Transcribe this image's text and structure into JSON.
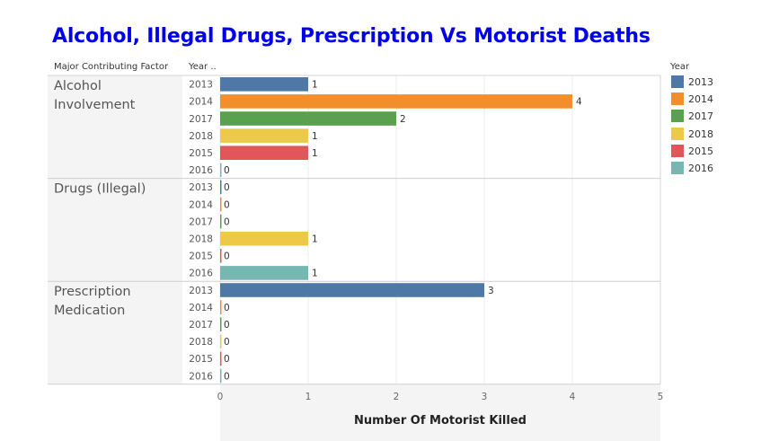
{
  "title": "Alcohol, Illegal Drugs, Prescription Vs Motorist Deaths",
  "colors": {
    "title": "#0000ee",
    "2013": "#4e79a7",
    "2014": "#f28e2b",
    "2017": "#59a14f",
    "2018": "#edc948",
    "2015": "#e15759",
    "2016": "#76b7b2"
  },
  "chart_data": {
    "type": "bar",
    "orientation": "horizontal",
    "title": "Alcohol, Illegal Drugs, Prescription Vs Motorist Deaths",
    "xlabel": "Number Of Motorist Killed",
    "row_headers": [
      "Major Contributing Factor",
      "Year .."
    ],
    "xlim": [
      0,
      5
    ],
    "xticks": [
      0,
      1,
      2,
      3,
      4,
      5
    ],
    "grid": true,
    "groups": [
      {
        "name": "Alcohol Involvement",
        "bars": [
          {
            "year": "2013",
            "value": 1
          },
          {
            "year": "2014",
            "value": 4
          },
          {
            "year": "2017",
            "value": 2
          },
          {
            "year": "2018",
            "value": 1
          },
          {
            "year": "2015",
            "value": 1
          },
          {
            "year": "2016",
            "value": 0
          }
        ]
      },
      {
        "name": "Drugs (Illegal)",
        "bars": [
          {
            "year": "2013",
            "value": 0
          },
          {
            "year": "2014",
            "value": 0
          },
          {
            "year": "2017",
            "value": 0
          },
          {
            "year": "2018",
            "value": 1
          },
          {
            "year": "2015",
            "value": 0
          },
          {
            "year": "2016",
            "value": 1
          }
        ]
      },
      {
        "name": "Prescription Medication",
        "bars": [
          {
            "year": "2013",
            "value": 3
          },
          {
            "year": "2014",
            "value": 0
          },
          {
            "year": "2017",
            "value": 0
          },
          {
            "year": "2018",
            "value": 0
          },
          {
            "year": "2015",
            "value": 0
          },
          {
            "year": "2016",
            "value": 0
          }
        ]
      }
    ],
    "legend": {
      "title": "Year",
      "placement": "right",
      "entries": [
        "2013",
        "2014",
        "2017",
        "2018",
        "2015",
        "2016"
      ]
    }
  }
}
